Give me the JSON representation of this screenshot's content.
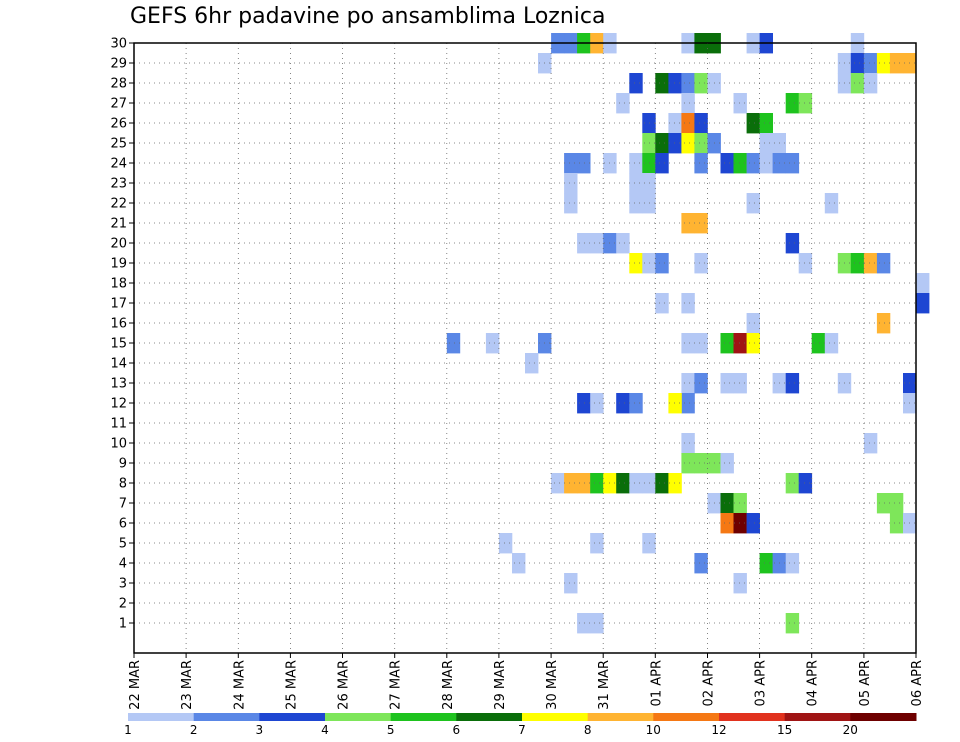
{
  "chart_data": {
    "type": "heatmap",
    "title": "GEFS 6hr padavine po ansamblima Loznica",
    "x_tick_labels": [
      "22 MAR",
      "23 MAR",
      "24 MAR",
      "25 MAR",
      "26 MAR",
      "27 MAR",
      "28 MAR",
      "29 MAR",
      "30 MAR",
      "31 MAR",
      "01 APR",
      "02 APR",
      "03 APR",
      "04 APR",
      "05 APR",
      "06 APR"
    ],
    "y_tick_labels": [
      "1",
      "2",
      "3",
      "4",
      "5",
      "6",
      "7",
      "8",
      "9",
      "10",
      "11",
      "12",
      "13",
      "14",
      "15",
      "16",
      "17",
      "18",
      "19",
      "20",
      "21",
      "22",
      "23",
      "24",
      "25",
      "26",
      "27",
      "28",
      "29",
      "30"
    ],
    "y_range": [
      0,
      30
    ],
    "x_range_days": [
      0,
      15
    ],
    "steps_per_day": 4,
    "grid": true,
    "color_scale": {
      "labels": [
        "1",
        "2",
        "3",
        "4",
        "5",
        "6",
        "7",
        "8",
        "10",
        "12",
        "15",
        "20"
      ],
      "colors": [
        "#b4c8f5",
        "#5a87e6",
        "#1e46d2",
        "#7ee65a",
        "#1ec31e",
        "#0a6e0a",
        "#ffff00",
        "#ffb432",
        "#f57814",
        "#e1321e",
        "#a01414",
        "#6e0000"
      ]
    },
    "cells": [
      {
        "t": "2026-03-30T00",
        "m": 30,
        "v": 2
      },
      {
        "t": "2026-03-30T06",
        "m": 30,
        "v": 2
      },
      {
        "t": "2026-03-30T12",
        "m": 30,
        "v": 5
      },
      {
        "t": "2026-03-30T18",
        "m": 30,
        "v": 8
      },
      {
        "t": "2026-03-31T00",
        "m": 30,
        "v": 1
      },
      {
        "t": "2026-04-01T12",
        "m": 30,
        "v": 1
      },
      {
        "t": "2026-04-01T18",
        "m": 30,
        "v": 6
      },
      {
        "t": "2026-04-02T00",
        "m": 30,
        "v": 6
      },
      {
        "t": "2026-04-02T18",
        "m": 30,
        "v": 1
      },
      {
        "t": "2026-04-03T00",
        "m": 30,
        "v": 3
      },
      {
        "t": "2026-04-04T18",
        "m": 30,
        "v": 1
      },
      {
        "t": "2026-03-29T18",
        "m": 29,
        "v": 1
      },
      {
        "t": "2026-04-04T12",
        "m": 29,
        "v": 1
      },
      {
        "t": "2026-04-04T18",
        "m": 29,
        "v": 3
      },
      {
        "t": "2026-04-05T00",
        "m": 29,
        "v": 2
      },
      {
        "t": "2026-04-05T06",
        "m": 29,
        "v": 7
      },
      {
        "t": "2026-04-05T12",
        "m": 29,
        "v": 8
      },
      {
        "t": "2026-04-05T18",
        "m": 29,
        "v": 8
      },
      {
        "t": "2026-03-31T12",
        "m": 28,
        "v": 3
      },
      {
        "t": "2026-04-01T00",
        "m": 28,
        "v": 6
      },
      {
        "t": "2026-04-01T06",
        "m": 28,
        "v": 3
      },
      {
        "t": "2026-04-01T12",
        "m": 28,
        "v": 2
      },
      {
        "t": "2026-04-01T18",
        "m": 28,
        "v": 4
      },
      {
        "t": "2026-04-02T00",
        "m": 28,
        "v": 1
      },
      {
        "t": "2026-04-04T12",
        "m": 28,
        "v": 1
      },
      {
        "t": "2026-04-04T18",
        "m": 28,
        "v": 4
      },
      {
        "t": "2026-04-05T00",
        "m": 28,
        "v": 1
      },
      {
        "t": "2026-03-31T06",
        "m": 27,
        "v": 1
      },
      {
        "t": "2026-04-01T12",
        "m": 27,
        "v": 1
      },
      {
        "t": "2026-04-02T12",
        "m": 27,
        "v": 1
      },
      {
        "t": "2026-04-03T12",
        "m": 27,
        "v": 5
      },
      {
        "t": "2026-04-03T18",
        "m": 27,
        "v": 4
      },
      {
        "t": "2026-03-31T18",
        "m": 26,
        "v": 3
      },
      {
        "t": "2026-04-01T06",
        "m": 26,
        "v": 1
      },
      {
        "t": "2026-04-01T12",
        "m": 26,
        "v": 10
      },
      {
        "t": "2026-04-01T18",
        "m": 26,
        "v": 3
      },
      {
        "t": "2026-04-02T18",
        "m": 26,
        "v": 6
      },
      {
        "t": "2026-04-03T00",
        "m": 26,
        "v": 5
      },
      {
        "t": "2026-03-31T18",
        "m": 25,
        "v": 4
      },
      {
        "t": "2026-04-01T00",
        "m": 25,
        "v": 6
      },
      {
        "t": "2026-04-01T06",
        "m": 25,
        "v": 3
      },
      {
        "t": "2026-04-01T12",
        "m": 25,
        "v": 7
      },
      {
        "t": "2026-04-01T18",
        "m": 25,
        "v": 4
      },
      {
        "t": "2026-04-02T00",
        "m": 25,
        "v": 2
      },
      {
        "t": "2026-04-03T00",
        "m": 25,
        "v": 1
      },
      {
        "t": "2026-04-03T06",
        "m": 25,
        "v": 1
      },
      {
        "t": "2026-03-30T06",
        "m": 24,
        "v": 2
      },
      {
        "t": "2026-03-30T12",
        "m": 24,
        "v": 2
      },
      {
        "t": "2026-03-31T00",
        "m": 24,
        "v": 1
      },
      {
        "t": "2026-03-31T12",
        "m": 24,
        "v": 1
      },
      {
        "t": "2026-03-31T18",
        "m": 24,
        "v": 5
      },
      {
        "t": "2026-04-01T00",
        "m": 24,
        "v": 3
      },
      {
        "t": "2026-04-01T18",
        "m": 24,
        "v": 2
      },
      {
        "t": "2026-04-02T06",
        "m": 24,
        "v": 3
      },
      {
        "t": "2026-04-02T12",
        "m": 24,
        "v": 5
      },
      {
        "t": "2026-04-02T18",
        "m": 24,
        "v": 2
      },
      {
        "t": "2026-04-03T00",
        "m": 24,
        "v": 1
      },
      {
        "t": "2026-04-03T06",
        "m": 24,
        "v": 2
      },
      {
        "t": "2026-04-03T12",
        "m": 24,
        "v": 2
      },
      {
        "t": "2026-03-30T06",
        "m": 23,
        "v": 1
      },
      {
        "t": "2026-03-31T12",
        "m": 23,
        "v": 1
      },
      {
        "t": "2026-03-31T18",
        "m": 23,
        "v": 1
      },
      {
        "t": "2026-03-30T06",
        "m": 22,
        "v": 1
      },
      {
        "t": "2026-03-31T12",
        "m": 22,
        "v": 1
      },
      {
        "t": "2026-03-31T18",
        "m": 22,
        "v": 1
      },
      {
        "t": "2026-04-02T18",
        "m": 22,
        "v": 1
      },
      {
        "t": "2026-04-04T06",
        "m": 22,
        "v": 1
      },
      {
        "t": "2026-04-01T12",
        "m": 21,
        "v": 8
      },
      {
        "t": "2026-04-01T18",
        "m": 21,
        "v": 8
      },
      {
        "t": "2026-03-30T12",
        "m": 20,
        "v": 1
      },
      {
        "t": "2026-03-30T18",
        "m": 20,
        "v": 1
      },
      {
        "t": "2026-03-31T00",
        "m": 20,
        "v": 2
      },
      {
        "t": "2026-03-31T06",
        "m": 20,
        "v": 1
      },
      {
        "t": "2026-04-03T12",
        "m": 20,
        "v": 3
      },
      {
        "t": "2026-03-31T12",
        "m": 19,
        "v": 7
      },
      {
        "t": "2026-03-31T18",
        "m": 19,
        "v": 1
      },
      {
        "t": "2026-04-01T00",
        "m": 19,
        "v": 2
      },
      {
        "t": "2026-04-01T18",
        "m": 19,
        "v": 1
      },
      {
        "t": "2026-04-03T18",
        "m": 19,
        "v": 1
      },
      {
        "t": "2026-04-04T12",
        "m": 19,
        "v": 4
      },
      {
        "t": "2026-04-04T18",
        "m": 19,
        "v": 5
      },
      {
        "t": "2026-04-05T00",
        "m": 19,
        "v": 8
      },
      {
        "t": "2026-04-05T06",
        "m": 19,
        "v": 2
      },
      {
        "t": "2026-04-06T00",
        "m": 18,
        "v": 1
      },
      {
        "t": "2026-04-01T00",
        "m": 17,
        "v": 1
      },
      {
        "t": "2026-04-01T12",
        "m": 17,
        "v": 1
      },
      {
        "t": "2026-04-06T00",
        "m": 17,
        "v": 3
      },
      {
        "t": "2026-04-02T18",
        "m": 16,
        "v": 1
      },
      {
        "t": "2026-04-05T06",
        "m": 16,
        "v": 8
      },
      {
        "t": "2026-03-28T00",
        "m": 15,
        "v": 2
      },
      {
        "t": "2026-03-28T18",
        "m": 15,
        "v": 1
      },
      {
        "t": "2026-03-29T18",
        "m": 15,
        "v": 2
      },
      {
        "t": "2026-04-01T12",
        "m": 15,
        "v": 1
      },
      {
        "t": "2026-04-01T18",
        "m": 15,
        "v": 1
      },
      {
        "t": "2026-04-02T06",
        "m": 15,
        "v": 5
      },
      {
        "t": "2026-04-02T12",
        "m": 15,
        "v": 15
      },
      {
        "t": "2026-04-02T18",
        "m": 15,
        "v": 7
      },
      {
        "t": "2026-04-04T00",
        "m": 15,
        "v": 5
      },
      {
        "t": "2026-04-04T06",
        "m": 15,
        "v": 1
      },
      {
        "t": "2026-03-29T12",
        "m": 14,
        "v": 1
      },
      {
        "t": "2026-04-01T12",
        "m": 13,
        "v": 1
      },
      {
        "t": "2026-04-01T18",
        "m": 13,
        "v": 2
      },
      {
        "t": "2026-04-01T12",
        "m": 12,
        "v": 2
      },
      {
        "t": "2026-04-02T06",
        "m": 13,
        "v": 1
      },
      {
        "t": "2026-04-02T12",
        "m": 13,
        "v": 1
      },
      {
        "t": "2026-04-03T06",
        "m": 13,
        "v": 1
      },
      {
        "t": "2026-04-03T12",
        "m": 13,
        "v": 3
      },
      {
        "t": "2026-04-04T12",
        "m": 13,
        "v": 1
      },
      {
        "t": "2026-04-05T18",
        "m": 13,
        "v": 3
      },
      {
        "t": "2026-03-30T12",
        "m": 12,
        "v": 3
      },
      {
        "t": "2026-03-30T18",
        "m": 12,
        "v": 1
      },
      {
        "t": "2026-03-31T06",
        "m": 12,
        "v": 3
      },
      {
        "t": "2026-03-31T12",
        "m": 12,
        "v": 2
      },
      {
        "t": "2026-04-01T06",
        "m": 12,
        "v": 7
      },
      {
        "t": "2026-04-05T18",
        "m": 12,
        "v": 1
      },
      {
        "t": "2026-04-01T12",
        "m": 10,
        "v": 1
      },
      {
        "t": "2026-04-05T00",
        "m": 10,
        "v": 1
      },
      {
        "t": "2026-04-01T12",
        "m": 9,
        "v": 4
      },
      {
        "t": "2026-04-01T18",
        "m": 9,
        "v": 4
      },
      {
        "t": "2026-04-02T00",
        "m": 9,
        "v": 4
      },
      {
        "t": "2026-04-02T06",
        "m": 9,
        "v": 1
      },
      {
        "t": "2026-03-30T00",
        "m": 8,
        "v": 1
      },
      {
        "t": "2026-03-30T06",
        "m": 8,
        "v": 8
      },
      {
        "t": "2026-03-30T12",
        "m": 8,
        "v": 8
      },
      {
        "t": "2026-03-30T18",
        "m": 8,
        "v": 5
      },
      {
        "t": "2026-03-31T00",
        "m": 8,
        "v": 7
      },
      {
        "t": "2026-03-31T06",
        "m": 8,
        "v": 6
      },
      {
        "t": "2026-03-31T12",
        "m": 8,
        "v": 1
      },
      {
        "t": "2026-03-31T18",
        "m": 8,
        "v": 1
      },
      {
        "t": "2026-04-01T00",
        "m": 8,
        "v": 6
      },
      {
        "t": "2026-04-01T06",
        "m": 8,
        "v": 7
      },
      {
        "t": "2026-04-03T12",
        "m": 8,
        "v": 4
      },
      {
        "t": "2026-04-03T18",
        "m": 8,
        "v": 3
      },
      {
        "t": "2026-04-02T00",
        "m": 7,
        "v": 1
      },
      {
        "t": "2026-04-02T06",
        "m": 7,
        "v": 6
      },
      {
        "t": "2026-04-02T12",
        "m": 7,
        "v": 4
      },
      {
        "t": "2026-04-05T06",
        "m": 7,
        "v": 4
      },
      {
        "t": "2026-04-05T12",
        "m": 7,
        "v": 4
      },
      {
        "t": "2026-04-02T06",
        "m": 6,
        "v": 10
      },
      {
        "t": "2026-04-02T12",
        "m": 6,
        "v": 20
      },
      {
        "t": "2026-04-02T18",
        "m": 6,
        "v": 3
      },
      {
        "t": "2026-04-05T12",
        "m": 6,
        "v": 4
      },
      {
        "t": "2026-04-05T18",
        "m": 6,
        "v": 1
      },
      {
        "t": "2026-03-29T00",
        "m": 5,
        "v": 1
      },
      {
        "t": "2026-03-30T18",
        "m": 5,
        "v": 1
      },
      {
        "t": "2026-03-31T18",
        "m": 5,
        "v": 1
      },
      {
        "t": "2026-03-29T06",
        "m": 4,
        "v": 1
      },
      {
        "t": "2026-04-01T18",
        "m": 4,
        "v": 2
      },
      {
        "t": "2026-04-03T00",
        "m": 4,
        "v": 5
      },
      {
        "t": "2026-04-03T06",
        "m": 4,
        "v": 2
      },
      {
        "t": "2026-04-03T12",
        "m": 4,
        "v": 1
      },
      {
        "t": "2026-03-30T06",
        "m": 3,
        "v": 1
      },
      {
        "t": "2026-04-02T12",
        "m": 3,
        "v": 1
      },
      {
        "t": "2026-03-30T12",
        "m": 1,
        "v": 1
      },
      {
        "t": "2026-03-30T18",
        "m": 1,
        "v": 1
      },
      {
        "t": "2026-04-03T12",
        "m": 1,
        "v": 4
      }
    ]
  }
}
